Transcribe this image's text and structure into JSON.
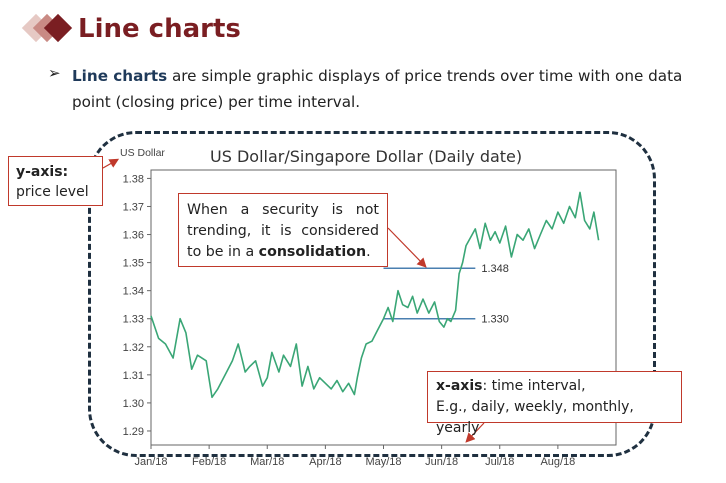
{
  "slide": {
    "title": "Line charts",
    "bullet_arrow": "➢",
    "bullet_bold": "Line charts",
    "bullet_text": " are simple graphic displays of price trends over time with one data point (closing price) per time interval.",
    "accent_color": "#7a1e22"
  },
  "callouts": {
    "y_axis_label": "y-axis:",
    "y_axis_text": "price level",
    "consolidation_text": "When a security is not trending, it is considered to be in a ",
    "consolidation_bold": "consolidation",
    "consolidation_end": ".",
    "x_axis_label": "x-axis",
    "x_axis_text": ": time interval,",
    "x_axis_examples": "E.g., daily, weekly, monthly, yearly",
    "border_color": "#c0392b"
  },
  "chart_data": {
    "type": "line",
    "title": "US Dollar/Singapore Dollar (Daily date)",
    "ylabel": "US Dollar",
    "xlabel": "",
    "ylim": [
      1.285,
      1.383
    ],
    "yticks": [
      1.29,
      1.3,
      1.31,
      1.32,
      1.33,
      1.34,
      1.35,
      1.36,
      1.37,
      1.38
    ],
    "ytick_labels": [
      "1.29",
      "1.30",
      "1.31",
      "1.32",
      "1.33",
      "1.34",
      "1.35",
      "1.36",
      "1.37",
      "1.38"
    ],
    "xticks": [
      "Jan/18",
      "Feb/18",
      "Mar/18",
      "Apr/18",
      "May/18",
      "Jun/18",
      "Jul/18",
      "Aug/18"
    ],
    "line_color": "#3aa676",
    "reference_color": "#4a7fb0",
    "grid": false,
    "series": [
      {
        "x": [
          0,
          0.13,
          0.25,
          0.38,
          0.5,
          0.6,
          0.7,
          0.8,
          0.95,
          1.05,
          1.15,
          1.3,
          1.4,
          1.5,
          1.55,
          1.62,
          1.7,
          1.8,
          1.92,
          2.0,
          2.08,
          2.2,
          2.28,
          2.4,
          2.5,
          2.6,
          2.7,
          2.8,
          2.9,
          3.0,
          3.1,
          3.2,
          3.3,
          3.4,
          3.5,
          3.55,
          3.62,
          3.7,
          3.8,
          3.9,
          4.0,
          4.08,
          4.16,
          4.25,
          4.33,
          4.42,
          4.5,
          4.58,
          4.68,
          4.78,
          4.88,
          4.96,
          5.04,
          5.1,
          5.16,
          5.24,
          5.3,
          5.36,
          5.42,
          5.5,
          5.58,
          5.66,
          5.75,
          5.84,
          5.92,
          6.0,
          6.1,
          6.2,
          6.3,
          6.4,
          6.5,
          6.6,
          6.7,
          6.8,
          6.9,
          7.0,
          7.1,
          7.2,
          7.3,
          7.38,
          7.46,
          7.55,
          7.62,
          7.7
        ],
        "values": [
          1.331,
          1.323,
          1.321,
          1.316,
          1.33,
          1.325,
          1.312,
          1.317,
          1.315,
          1.302,
          1.305,
          1.311,
          1.315,
          1.321,
          1.317,
          1.311,
          1.313,
          1.315,
          1.306,
          1.309,
          1.318,
          1.311,
          1.317,
          1.313,
          1.321,
          1.306,
          1.313,
          1.305,
          1.309,
          1.307,
          1.305,
          1.308,
          1.304,
          1.307,
          1.303,
          1.309,
          1.316,
          1.321,
          1.322,
          1.326,
          1.33,
          1.334,
          1.329,
          1.34,
          1.335,
          1.334,
          1.338,
          1.332,
          1.337,
          1.332,
          1.336,
          1.329,
          1.327,
          1.33,
          1.329,
          1.333,
          1.346,
          1.35,
          1.356,
          1.359,
          1.362,
          1.355,
          1.364,
          1.358,
          1.361,
          1.357,
          1.363,
          1.352,
          1.36,
          1.358,
          1.362,
          1.355,
          1.36,
          1.365,
          1.362,
          1.368,
          1.364,
          1.37,
          1.366,
          1.375,
          1.365,
          1.362,
          1.368,
          1.358
        ]
      }
    ],
    "reference_lines": [
      {
        "value": 1.348,
        "label": "1.348"
      },
      {
        "value": 1.33,
        "label": "1.330"
      }
    ]
  }
}
